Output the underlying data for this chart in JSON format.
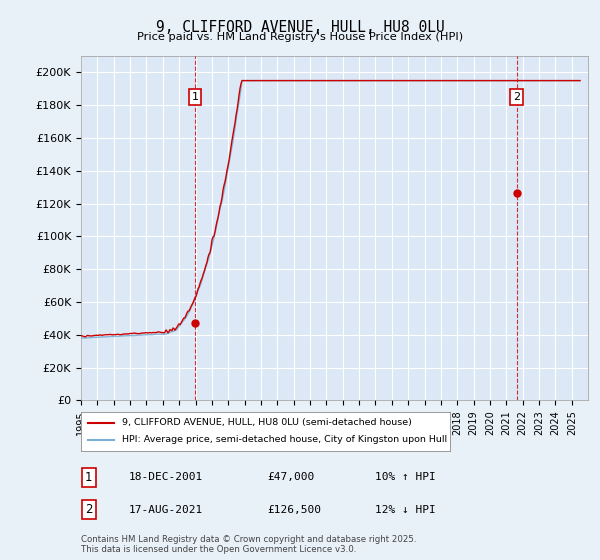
{
  "title": "9, CLIFFORD AVENUE, HULL, HU8 0LU",
  "subtitle": "Price paid vs. HM Land Registry's House Price Index (HPI)",
  "ylabel_ticks": [
    "£0",
    "£20K",
    "£40K",
    "£60K",
    "£80K",
    "£100K",
    "£120K",
    "£140K",
    "£160K",
    "£180K",
    "£200K"
  ],
  "ytick_values": [
    0,
    20000,
    40000,
    60000,
    80000,
    100000,
    120000,
    140000,
    160000,
    180000,
    200000
  ],
  "ylim": [
    0,
    210000
  ],
  "xlim_start": 1995.0,
  "xlim_end": 2025.99,
  "background_color": "#e8f0f8",
  "plot_bg_color": "#dce8f5",
  "grid_color": "#ffffff",
  "line1_color": "#cc0000",
  "line2_color": "#7aaed4",
  "marker1_x": 2001.96,
  "marker1_y": 47000,
  "marker2_x": 2021.63,
  "marker2_y": 126500,
  "legend_line1": "9, CLIFFORD AVENUE, HULL, HU8 0LU (semi-detached house)",
  "legend_line2": "HPI: Average price, semi-detached house, City of Kingston upon Hull",
  "annotation1_date": "18-DEC-2001",
  "annotation1_price": "£47,000",
  "annotation1_hpi": "10% ↑ HPI",
  "annotation2_date": "17-AUG-2021",
  "annotation2_price": "£126,500",
  "annotation2_hpi": "12% ↓ HPI",
  "footer": "Contains HM Land Registry data © Crown copyright and database right 2025.\nThis data is licensed under the Open Government Licence v3.0."
}
